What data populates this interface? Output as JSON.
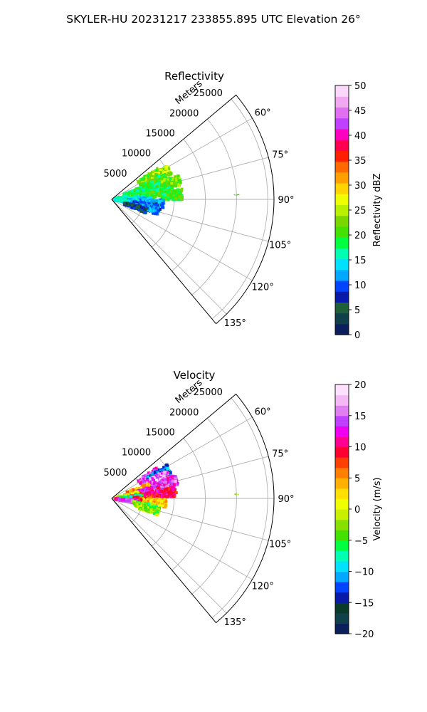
{
  "figure_title": "SKYLER-HU  20231217  233855.895 UTC Elevation 26°",
  "chart_data": [
    {
      "type": "polar-sector",
      "title": "Reflectivity",
      "range_axis_label": "Meters",
      "range_ticks": [
        5000,
        10000,
        15000,
        20000,
        25000
      ],
      "range_tick_labels": [
        "5000",
        "10000",
        "15000",
        "20000",
        "25000"
      ],
      "rmax": 26000,
      "azimuth_range_deg": [
        50,
        140
      ],
      "azimuth_ticks": [
        60,
        75,
        90,
        105,
        120,
        135
      ],
      "azimuth_tick_labels": [
        "60°",
        "75°",
        "90°",
        "105°",
        "120°",
        "135°"
      ],
      "grid": true,
      "colorbar": {
        "label": "Reflectivity dBZ",
        "vmin": 0,
        "vmax": 50,
        "ticks": [
          0,
          5,
          10,
          15,
          20,
          25,
          30,
          35,
          40,
          45,
          50
        ],
        "tick_labels": [
          "0",
          "5",
          "10",
          "15",
          "20",
          "25",
          "30",
          "35",
          "40",
          "45",
          "50"
        ],
        "colors": [
          "#0b1f5c",
          "#10404a",
          "#1f5f3a",
          "#0a1aa8",
          "#0044ff",
          "#00a8ff",
          "#00e0ff",
          "#00ffb0",
          "#00ff40",
          "#44e000",
          "#7ad800",
          "#b8f000",
          "#f0ff00",
          "#ffd400",
          "#ffa000",
          "#ff6a00",
          "#ff2000",
          "#ff0050",
          "#ff00c0",
          "#c040ff",
          "#e070f0",
          "#f0a8f0",
          "#fbd8fb"
        ]
      },
      "echo_clusters": [
        {
          "az": 60,
          "r": 7000,
          "value": 22
        },
        {
          "az": 63,
          "r": 8500,
          "value": 24
        },
        {
          "az": 68,
          "r": 7500,
          "value": 20
        },
        {
          "az": 72,
          "r": 4000,
          "value": 18
        },
        {
          "az": 74,
          "r": 9500,
          "value": 22
        },
        {
          "az": 76,
          "r": 6000,
          "value": 17
        },
        {
          "az": 80,
          "r": 2500,
          "value": 16
        },
        {
          "az": 82,
          "r": 8000,
          "value": 19
        },
        {
          "az": 84,
          "r": 5000,
          "value": 21
        },
        {
          "az": 86,
          "r": 9500,
          "value": 20
        },
        {
          "az": 88,
          "r": 3500,
          "value": 15
        },
        {
          "az": 92,
          "r": 4500,
          "value": 13
        },
        {
          "az": 95,
          "r": 6500,
          "value": 12
        },
        {
          "az": 98,
          "r": 2500,
          "value": 14
        },
        {
          "az": 100,
          "r": 5500,
          "value": 9
        },
        {
          "az": 104,
          "r": 6000,
          "value": 11
        },
        {
          "az": 108,
          "r": 4000,
          "value": 6
        },
        {
          "az": 88,
          "r": 20000,
          "value": 20
        }
      ]
    },
    {
      "type": "polar-sector",
      "title": "Velocity",
      "range_axis_label": "Meters",
      "range_ticks": [
        5000,
        10000,
        15000,
        20000,
        25000
      ],
      "range_tick_labels": [
        "5000",
        "10000",
        "15000",
        "20000",
        "25000"
      ],
      "rmax": 26000,
      "azimuth_range_deg": [
        50,
        140
      ],
      "azimuth_ticks": [
        60,
        75,
        90,
        105,
        120,
        135
      ],
      "azimuth_tick_labels": [
        "60°",
        "75°",
        "90°",
        "105°",
        "120°",
        "135°"
      ],
      "grid": true,
      "colorbar": {
        "label": "Velocity (m/s)",
        "vmin": -20,
        "vmax": 20,
        "ticks": [
          -20,
          -15,
          -10,
          -5,
          0,
          5,
          10,
          15,
          20
        ],
        "tick_labels": [
          "−20",
          "−15",
          "−10",
          "−5",
          "0",
          "5",
          "10",
          "15",
          "20"
        ],
        "colors": [
          "#0b1f5c",
          "#10404a",
          "#0a3a2a",
          "#0a1aa8",
          "#0044ff",
          "#00a8ff",
          "#00e0ff",
          "#00ffb0",
          "#00ff40",
          "#44e000",
          "#88e000",
          "#c8f000",
          "#f0ff00",
          "#ffe000",
          "#ffb000",
          "#ff8000",
          "#ff4000",
          "#ff0030",
          "#ff0090",
          "#f000f0",
          "#c040ff",
          "#e080f0",
          "#f4b8f4",
          "#fde0fd"
        ]
      },
      "echo_clusters": [
        {
          "az": 60,
          "r": 7000,
          "value": 15
        },
        {
          "az": 63,
          "r": 8500,
          "value": -13
        },
        {
          "az": 67,
          "r": 8000,
          "value": 16
        },
        {
          "az": 72,
          "r": 4500,
          "value": 4
        },
        {
          "az": 74,
          "r": 9000,
          "value": 14
        },
        {
          "az": 78,
          "r": 6000,
          "value": 13
        },
        {
          "az": 80,
          "r": 2500,
          "value": -1
        },
        {
          "az": 84,
          "r": 8500,
          "value": 11
        },
        {
          "az": 86,
          "r": 5000,
          "value": 10
        },
        {
          "az": 88,
          "r": 3000,
          "value": -7
        },
        {
          "az": 92,
          "r": 5500,
          "value": 8
        },
        {
          "az": 95,
          "r": 7000,
          "value": 3
        },
        {
          "az": 98,
          "r": 2500,
          "value": 14
        },
        {
          "az": 102,
          "r": 5500,
          "value": -4
        },
        {
          "az": 106,
          "r": 6000,
          "value": -3
        },
        {
          "az": 88,
          "r": 20000,
          "value": -2
        }
      ]
    }
  ]
}
